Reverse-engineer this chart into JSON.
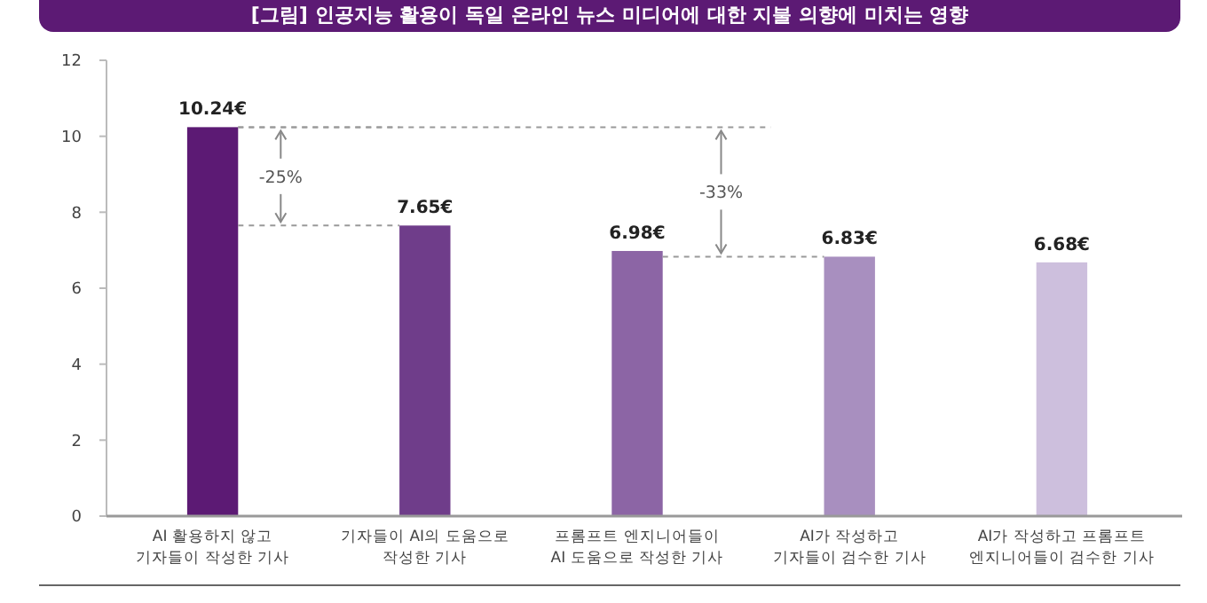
{
  "chart_data": {
    "type": "bar",
    "title": "[그림] 인공지능 활용이 독일 온라인 뉴스 미디어에 대한 지불 의향에 미치는 영향",
    "categories": [
      "AI 활용하지 않고\n기자들이 작성한 기사",
      "기자들이 AI의 도움으로\n작성한 기사",
      "프롬프트 엔지니어들이\nAI 도움으로 작성한 기사",
      "AI가 작성하고\n기자들이 검수한 기사",
      "AI가 작성하고 프롬프트\n엔지니어들이 검수한 기사"
    ],
    "values": [
      10.24,
      7.65,
      6.98,
      6.83,
      6.68
    ],
    "colors": [
      "#5c1a74",
      "#6f3d8a",
      "#8c65a5",
      "#a88fbf",
      "#cdbfdd"
    ],
    "value_labels": [
      "10.24€",
      "7.65€",
      "6.98€",
      "6.83€",
      "6.68€"
    ],
    "ylim": [
      0,
      12
    ],
    "yticks": [
      0,
      2,
      4,
      6,
      8,
      10,
      12
    ],
    "annotations": [
      "-25%",
      "-33%"
    ]
  }
}
